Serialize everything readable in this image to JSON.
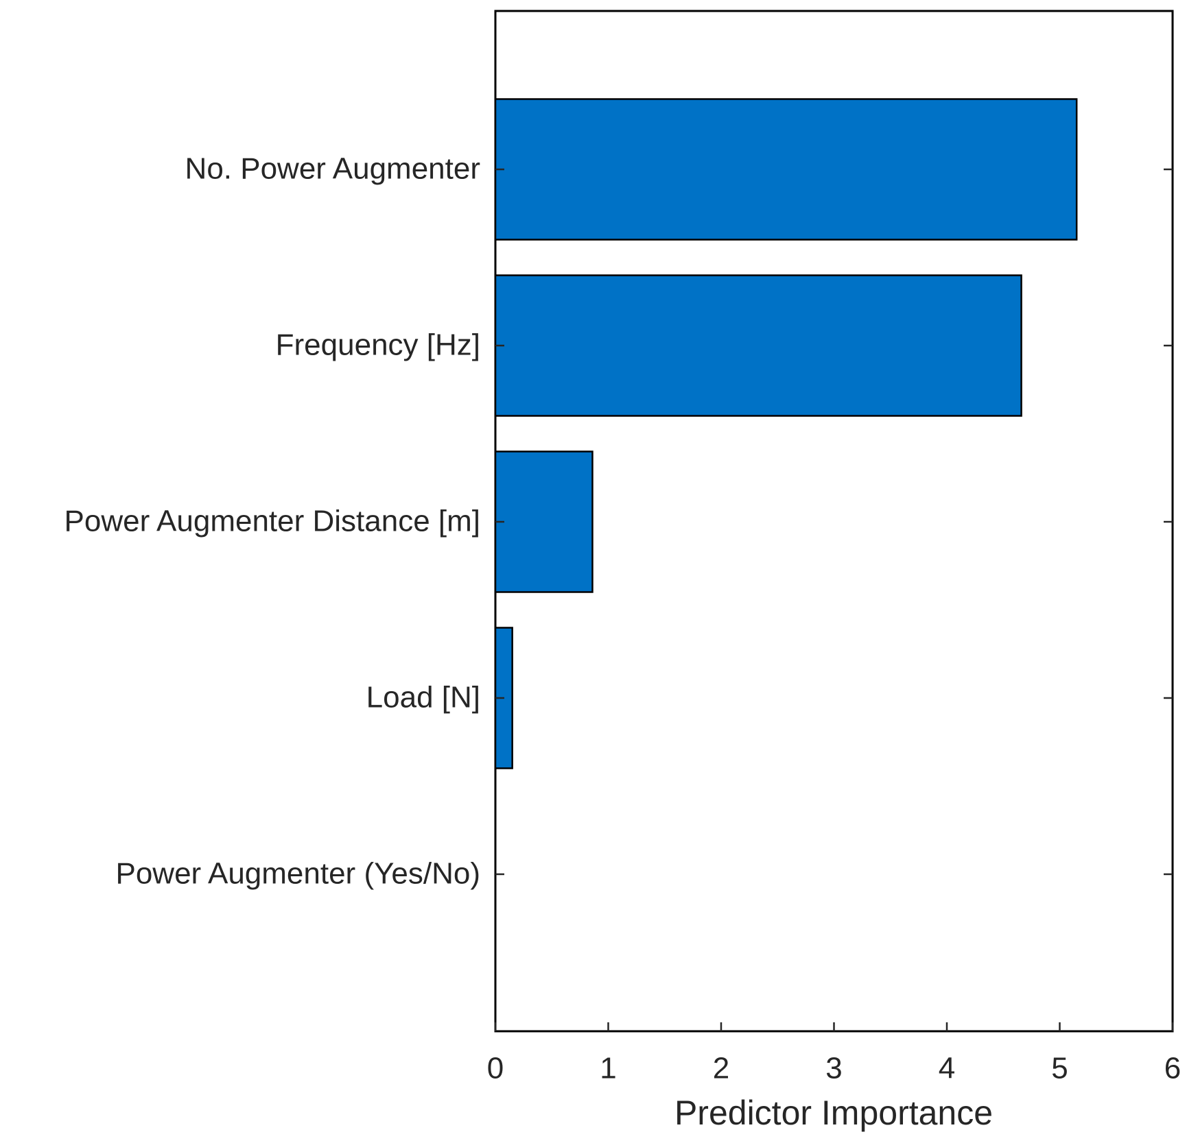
{
  "chart_data": {
    "type": "barh",
    "xlabel": "Predictor Importance",
    "categories": [
      "No. Power Augmenter",
      "Frequency [Hz]",
      "Power Augmenter Distance [m]",
      "Load [N]",
      "Power Augmenter (Yes/No)"
    ],
    "values": [
      5.15,
      4.66,
      0.86,
      0.15,
      0
    ],
    "color": "#0072c6",
    "xlim": [
      0,
      6
    ],
    "xticks": [
      0,
      1,
      2,
      3,
      4,
      5,
      6
    ]
  }
}
